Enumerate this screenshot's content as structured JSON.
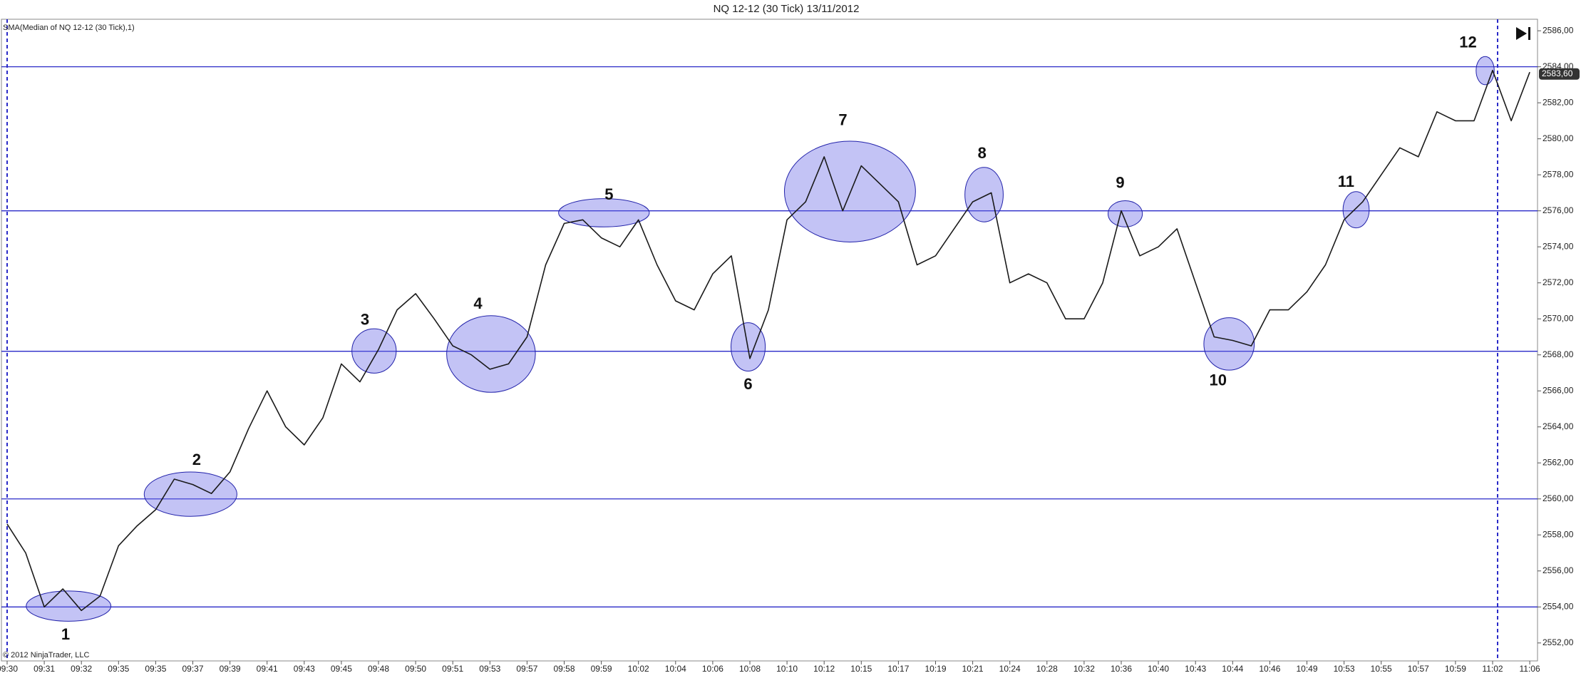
{
  "chart_data": {
    "type": "line",
    "title": "NQ 12-12 (30 Tick)  13/11/2012",
    "indicator_label": "SMA(Median of NQ 12-12 (30 Tick),1)",
    "copyright": "© 2012 NinjaTrader, LLC",
    "categories": [
      "09:30",
      null,
      "09:31",
      null,
      "09:32",
      null,
      "09:35",
      null,
      "09:35",
      null,
      "09:37",
      null,
      "09:39",
      null,
      "09:41",
      null,
      "09:43",
      null,
      "09:45",
      null,
      "09:48",
      null,
      "09:50",
      null,
      "09:51",
      null,
      "09:53",
      null,
      "09:57",
      null,
      "09:58",
      null,
      "09:59",
      null,
      "10:02",
      null,
      "10:04",
      null,
      "10:06",
      null,
      "10:08",
      null,
      "10:10",
      null,
      "10:12",
      null,
      "10:15",
      null,
      "10:17",
      null,
      "10:19",
      null,
      "10:21",
      null,
      "10:24",
      null,
      "10:28",
      null,
      "10:32",
      null,
      "10:36",
      null,
      "10:40",
      null,
      "10:43",
      null,
      "10:44",
      null,
      "10:46",
      null,
      "10:49",
      null,
      "10:53",
      null,
      "10:55",
      null,
      "10:57",
      null,
      "10:59",
      null,
      "11:02",
      null,
      "11:06"
    ],
    "series": [
      {
        "name": "NQ 12-12 (30 Tick)",
        "color": "#1a1a1a",
        "values": [
          2558.6,
          2557,
          2554,
          2555,
          2553.8,
          2554.6,
          2557.4,
          2558.5,
          2559.4,
          2561.1,
          2560.8,
          2560.3,
          2561.5,
          2563.9,
          2566,
          2564,
          2563,
          2564.5,
          2567.5,
          2566.5,
          2568.3,
          2570.5,
          2571.4,
          2570,
          2568.5,
          2568,
          2567.2,
          2567.5,
          2569,
          2573,
          2575.3,
          2575.5,
          2574.5,
          2574,
          2575.5,
          2573,
          2571,
          2570.5,
          2572.5,
          2573.5,
          2567.8,
          2570.5,
          2575.5,
          2576.5,
          2579,
          2576,
          2578.5,
          2577.5,
          2576.5,
          2573,
          2573.5,
          2575,
          2576.5,
          2577,
          2572,
          2572.5,
          2572,
          2570,
          2570,
          2572,
          2576,
          2573.5,
          2574,
          2575,
          2572,
          2569,
          2568.8,
          2568.5,
          2570.5,
          2570.5,
          2571.5,
          2573,
          2575.5,
          2576.5,
          2578,
          2579.5,
          2579,
          2581.5,
          2581,
          2581,
          2583.8,
          2581,
          2583.7
        ]
      }
    ],
    "ylim": [
      2551.2,
      2586.6
    ],
    "yticks": [
      {
        "value": 2552,
        "label": "2552,00"
      },
      {
        "value": 2554,
        "label": "2554,00"
      },
      {
        "value": 2556,
        "label": "2556,00"
      },
      {
        "value": 2558,
        "label": "2558,00"
      },
      {
        "value": 2560,
        "label": "2560,00"
      },
      {
        "value": 2562,
        "label": "2562,00"
      },
      {
        "value": 2564,
        "label": "2564,00"
      },
      {
        "value": 2566,
        "label": "2566,00"
      },
      {
        "value": 2568,
        "label": "2568,00"
      },
      {
        "value": 2570,
        "label": "2570,00"
      },
      {
        "value": 2572,
        "label": "2572,00"
      },
      {
        "value": 2574,
        "label": "2574,00"
      },
      {
        "value": 2576,
        "label": "2576,00"
      },
      {
        "value": 2578,
        "label": "2578,00"
      },
      {
        "value": 2580,
        "label": "2580,00"
      },
      {
        "value": 2582,
        "label": "2582,00"
      },
      {
        "value": 2584,
        "label": "2584,00"
      },
      {
        "value": 2586,
        "label": "2586,00"
      }
    ],
    "hlines": [
      2554,
      2560,
      2568.2,
      2576,
      2584
    ],
    "hline_color": "#2a2ac8",
    "last_price": {
      "value": 2583.6,
      "label": "2583,60"
    },
    "annotations": [
      "1",
      "2",
      "3",
      "4",
      "5",
      "6",
      "7",
      "8",
      "9",
      "10",
      "11",
      "12"
    ],
    "annotation_color": "#6a6ae6"
  }
}
